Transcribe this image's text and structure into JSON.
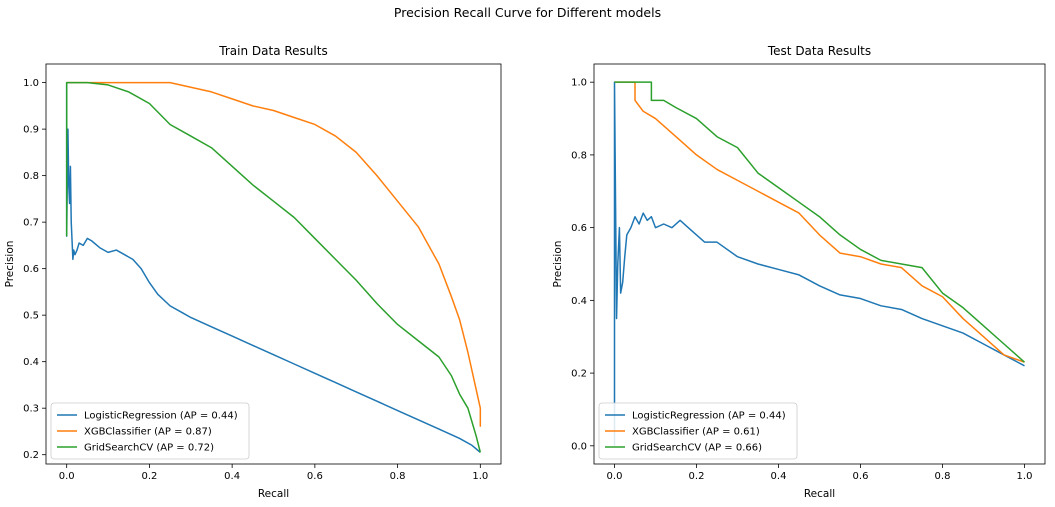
{
  "figure": {
    "suptitle": "Precision Recall Curve for Different models"
  },
  "chart_data": [
    {
      "type": "line",
      "title": "Train Data Results",
      "xlabel": "Recall",
      "ylabel": "Precision",
      "xlim": [
        -0.05,
        1.05
      ],
      "ylim": [
        0.18,
        1.04
      ],
      "xticks": [
        0.0,
        0.2,
        0.4,
        0.6,
        0.8,
        1.0
      ],
      "xtick_labels": [
        "0.0",
        "0.2",
        "0.4",
        "0.6",
        "0.8",
        "1.0"
      ],
      "yticks": [
        0.2,
        0.3,
        0.4,
        0.5,
        0.6,
        0.7,
        0.8,
        0.9,
        1.0
      ],
      "ytick_labels": [
        "0.2",
        "0.3",
        "0.4",
        "0.5",
        "0.6",
        "0.7",
        "0.8",
        "0.9",
        "1.0"
      ],
      "grid": false,
      "legend": "lower-left",
      "series": [
        {
          "name": "LogisticRegression (AP = 0.44)",
          "color": "#1f77b4",
          "x": [
            0.0,
            0.0,
            0.003,
            0.005,
            0.007,
            0.009,
            0.011,
            0.013,
            0.015,
            0.017,
            0.02,
            0.025,
            0.03,
            0.04,
            0.05,
            0.06,
            0.08,
            0.1,
            0.12,
            0.14,
            0.16,
            0.18,
            0.2,
            0.22,
            0.25,
            0.28,
            0.3,
            0.35,
            0.4,
            0.45,
            0.5,
            0.55,
            0.6,
            0.65,
            0.7,
            0.75,
            0.8,
            0.85,
            0.9,
            0.95,
            0.98,
            1.0
          ],
          "y": [
            1.0,
            0.67,
            0.9,
            0.78,
            0.74,
            0.82,
            0.7,
            0.66,
            0.62,
            0.64,
            0.63,
            0.64,
            0.655,
            0.65,
            0.665,
            0.66,
            0.645,
            0.635,
            0.64,
            0.63,
            0.62,
            0.6,
            0.57,
            0.545,
            0.52,
            0.505,
            0.495,
            0.475,
            0.455,
            0.435,
            0.415,
            0.395,
            0.375,
            0.355,
            0.335,
            0.315,
            0.295,
            0.275,
            0.255,
            0.235,
            0.22,
            0.205
          ]
        },
        {
          "name": "XGBClassifier (AP = 0.87)",
          "color": "#ff7f0e",
          "x": [
            0.0,
            0.05,
            0.1,
            0.15,
            0.2,
            0.25,
            0.3,
            0.35,
            0.4,
            0.45,
            0.5,
            0.55,
            0.6,
            0.65,
            0.7,
            0.75,
            0.8,
            0.85,
            0.9,
            0.93,
            0.95,
            0.97,
            0.98,
            0.99,
            1.0,
            1.0
          ],
          "y": [
            1.0,
            1.0,
            1.0,
            1.0,
            1.0,
            1.0,
            0.99,
            0.98,
            0.965,
            0.95,
            0.94,
            0.925,
            0.91,
            0.885,
            0.85,
            0.8,
            0.745,
            0.69,
            0.61,
            0.54,
            0.49,
            0.42,
            0.38,
            0.34,
            0.3,
            0.26
          ]
        },
        {
          "name": "GridSearchCV (AP = 0.72)",
          "color": "#2ca02c",
          "x": [
            0.0,
            0.0,
            0.05,
            0.1,
            0.15,
            0.2,
            0.25,
            0.3,
            0.35,
            0.4,
            0.45,
            0.5,
            0.55,
            0.6,
            0.65,
            0.7,
            0.75,
            0.8,
            0.85,
            0.9,
            0.93,
            0.95,
            0.97,
            0.98,
            0.99,
            1.0
          ],
          "y": [
            0.67,
            1.0,
            1.0,
            0.995,
            0.98,
            0.955,
            0.91,
            0.885,
            0.86,
            0.82,
            0.78,
            0.745,
            0.71,
            0.665,
            0.62,
            0.575,
            0.525,
            0.48,
            0.445,
            0.41,
            0.37,
            0.33,
            0.3,
            0.27,
            0.24,
            0.205
          ]
        }
      ]
    },
    {
      "type": "line",
      "title": "Test Data Results",
      "xlabel": "Recall",
      "ylabel": "Precision",
      "xlim": [
        -0.05,
        1.05
      ],
      "ylim": [
        -0.05,
        1.05
      ],
      "xticks": [
        0.0,
        0.2,
        0.4,
        0.6,
        0.8,
        1.0
      ],
      "xtick_labels": [
        "0.0",
        "0.2",
        "0.4",
        "0.6",
        "0.8",
        "1.0"
      ],
      "yticks": [
        0.0,
        0.2,
        0.4,
        0.6,
        0.8,
        1.0
      ],
      "ytick_labels": [
        "0.0",
        "0.2",
        "0.4",
        "0.6",
        "0.8",
        "1.0"
      ],
      "grid": false,
      "legend": "lower-left",
      "series": [
        {
          "name": "LogisticRegression (AP = 0.44)",
          "color": "#1f77b4",
          "x": [
            0.0,
            0.0,
            0.005,
            0.008,
            0.012,
            0.015,
            0.02,
            0.025,
            0.03,
            0.04,
            0.05,
            0.06,
            0.07,
            0.08,
            0.09,
            0.1,
            0.12,
            0.14,
            0.16,
            0.18,
            0.2,
            0.22,
            0.25,
            0.3,
            0.35,
            0.4,
            0.45,
            0.5,
            0.55,
            0.6,
            0.65,
            0.7,
            0.75,
            0.8,
            0.85,
            0.9,
            0.95,
            1.0
          ],
          "y": [
            0.0,
            1.0,
            0.35,
            0.5,
            0.6,
            0.42,
            0.45,
            0.52,
            0.58,
            0.6,
            0.63,
            0.61,
            0.64,
            0.62,
            0.63,
            0.6,
            0.61,
            0.6,
            0.62,
            0.6,
            0.58,
            0.56,
            0.56,
            0.52,
            0.5,
            0.485,
            0.47,
            0.44,
            0.415,
            0.405,
            0.385,
            0.375,
            0.35,
            0.33,
            0.31,
            0.28,
            0.25,
            0.22
          ]
        },
        {
          "name": "XGBClassifier (AP = 0.61)",
          "color": "#ff7f0e",
          "x": [
            0.0,
            0.05,
            0.05,
            0.07,
            0.1,
            0.15,
            0.2,
            0.25,
            0.3,
            0.35,
            0.4,
            0.45,
            0.5,
            0.55,
            0.6,
            0.65,
            0.7,
            0.75,
            0.8,
            0.85,
            0.9,
            0.95,
            1.0
          ],
          "y": [
            1.0,
            1.0,
            0.95,
            0.92,
            0.9,
            0.85,
            0.8,
            0.76,
            0.73,
            0.7,
            0.67,
            0.64,
            0.58,
            0.53,
            0.52,
            0.5,
            0.49,
            0.44,
            0.41,
            0.35,
            0.3,
            0.25,
            0.23
          ]
        },
        {
          "name": "GridSearchCV (AP = 0.66)",
          "color": "#2ca02c",
          "x": [
            0.0,
            0.09,
            0.09,
            0.12,
            0.15,
            0.2,
            0.25,
            0.3,
            0.35,
            0.4,
            0.45,
            0.5,
            0.55,
            0.6,
            0.65,
            0.7,
            0.75,
            0.8,
            0.85,
            0.9,
            0.95,
            1.0
          ],
          "y": [
            1.0,
            1.0,
            0.95,
            0.95,
            0.93,
            0.9,
            0.85,
            0.82,
            0.75,
            0.71,
            0.67,
            0.63,
            0.58,
            0.54,
            0.51,
            0.5,
            0.49,
            0.42,
            0.38,
            0.33,
            0.28,
            0.23
          ]
        }
      ]
    }
  ]
}
